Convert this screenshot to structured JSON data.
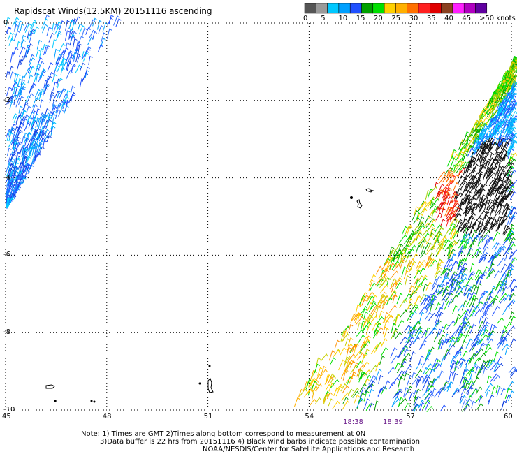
{
  "title": "Rapidscat Winds(12.5KM) 20151116 ascending",
  "legend": {
    "colors": [
      "#555555",
      "#9a9a9a",
      "#00c8ff",
      "#00a0ff",
      "#2050ff",
      "#00a000",
      "#00e000",
      "#ffd000",
      "#ffb000",
      "#ff7000",
      "#ff2020",
      "#e00000",
      "#8a4020",
      "#ff20ff",
      "#b000c0",
      "#6000a0"
    ],
    "labels": [
      "0",
      "5",
      "10",
      "15",
      "20",
      "25",
      "30",
      "35",
      "40",
      "45",
      ">50 knots"
    ]
  },
  "axes": {
    "lat_labels": [
      "0",
      "-2",
      "-4",
      "-6",
      "-8",
      "-10"
    ],
    "lon_labels": [
      "45",
      "48",
      "51",
      "54",
      "57",
      "60"
    ]
  },
  "times": [
    "18:38",
    "18:39"
  ],
  "notes": [
    "Note: 1) Times are GMT 2)Times along bottom correspond to measurement at 0N",
    "3)Data buffer is 22 hrs from 20151116 4) Black wind barbs indicate possible contamination",
    "NOAA/NESDIS/Center for Satellite Applications and Research"
  ]
}
